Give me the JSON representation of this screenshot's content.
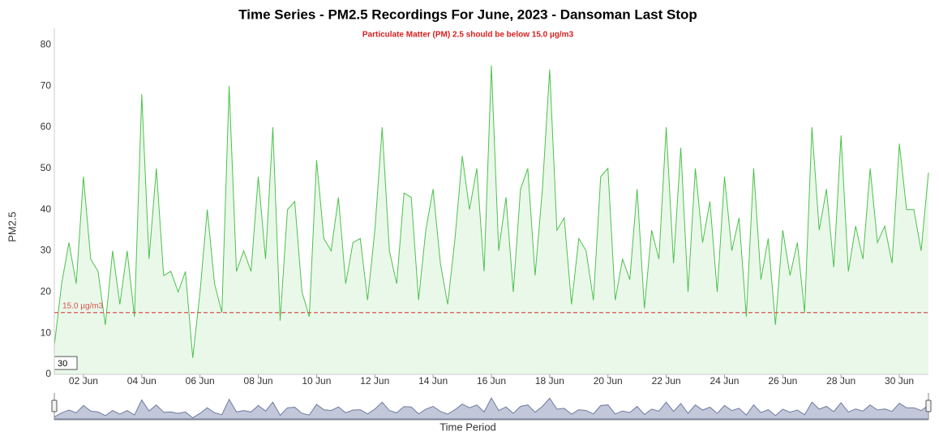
{
  "chart_data": {
    "type": "area",
    "title": "Time Series - PM2.5 Recordings For June, 2023 - Dansoman Last Stop",
    "subtitle": "Particulate Matter (PM) 2.5 should be below 15.0 µg/m3",
    "y_label": "PM2.5",
    "x_label": "Time Period",
    "range_label": "30",
    "threshold": {
      "value": 15,
      "label": "15.0 µg/m3",
      "color": "#d9534f"
    },
    "xlim": [
      1,
      31
    ],
    "xticks": [
      {
        "value": 2,
        "label": "02 Jun"
      },
      {
        "value": 4,
        "label": "04 Jun"
      },
      {
        "value": 6,
        "label": "06 Jun"
      },
      {
        "value": 8,
        "label": "08 Jun"
      },
      {
        "value": 10,
        "label": "10 Jun"
      },
      {
        "value": 12,
        "label": "12 Jun"
      },
      {
        "value": 14,
        "label": "14 Jun"
      },
      {
        "value": 16,
        "label": "16 Jun"
      },
      {
        "value": 18,
        "label": "18 Jun"
      },
      {
        "value": 20,
        "label": "20 Jun"
      },
      {
        "value": 22,
        "label": "22 Jun"
      },
      {
        "value": 24,
        "label": "24 Jun"
      },
      {
        "value": 26,
        "label": "26 Jun"
      },
      {
        "value": 28,
        "label": "28 Jun"
      },
      {
        "value": 30,
        "label": "30 Jun"
      }
    ],
    "ylim": [
      0,
      84
    ],
    "yticks": [
      0,
      10,
      20,
      30,
      40,
      50,
      60,
      70,
      80
    ],
    "x": [
      1,
      1.25,
      1.5,
      1.75,
      2,
      2.25,
      2.5,
      2.75,
      3,
      3.25,
      3.5,
      3.75,
      4,
      4.25,
      4.5,
      4.75,
      5,
      5.25,
      5.5,
      5.75,
      6,
      6.25,
      6.5,
      6.75,
      7,
      7.25,
      7.5,
      7.75,
      8,
      8.25,
      8.5,
      8.75,
      9,
      9.25,
      9.5,
      9.75,
      10,
      10.25,
      10.5,
      10.75,
      11,
      11.25,
      11.5,
      11.75,
      12,
      12.25,
      12.5,
      12.75,
      13,
      13.25,
      13.5,
      13.75,
      14,
      14.25,
      14.5,
      14.75,
      15,
      15.25,
      15.5,
      15.75,
      16,
      16.25,
      16.5,
      16.75,
      17,
      17.25,
      17.5,
      17.75,
      18,
      18.25,
      18.5,
      18.75,
      19,
      19.25,
      19.5,
      19.75,
      20,
      20.25,
      20.5,
      20.75,
      21,
      21.25,
      21.5,
      21.75,
      22,
      22.25,
      22.5,
      22.75,
      23,
      23.25,
      23.5,
      23.75,
      24,
      24.25,
      24.5,
      24.75,
      25,
      25.25,
      25.5,
      25.75,
      26,
      26.25,
      26.5,
      26.75,
      27,
      27.25,
      27.5,
      27.75,
      28,
      28.25,
      28.5,
      28.75,
      29,
      29.25,
      29.5,
      29.75,
      30,
      30.25,
      30.5,
      30.75,
      31
    ],
    "series": [
      {
        "name": "PM2.5",
        "color": "#4cc24c",
        "fill": "#eaf8ea",
        "values": [
          7,
          22,
          32,
          22,
          48,
          28,
          25,
          12,
          30,
          17,
          30,
          14,
          68,
          28,
          50,
          24,
          25,
          20,
          25,
          4,
          20,
          40,
          22,
          15,
          70,
          25,
          30,
          25,
          48,
          28,
          60,
          13,
          40,
          42,
          20,
          14,
          52,
          33,
          30,
          43,
          22,
          32,
          33,
          18,
          35,
          60,
          30,
          22,
          44,
          43,
          18,
          35,
          45,
          27,
          17,
          33,
          53,
          40,
          50,
          25,
          75,
          30,
          43,
          20,
          45,
          50,
          24,
          45,
          74,
          35,
          38,
          17,
          33,
          30,
          18,
          48,
          50,
          18,
          28,
          23,
          45,
          16,
          35,
          28,
          60,
          27,
          55,
          20,
          50,
          32,
          42,
          20,
          48,
          30,
          38,
          14,
          50,
          23,
          33,
          12,
          35,
          24,
          32,
          15,
          60,
          35,
          45,
          26,
          58,
          25,
          36,
          28,
          50,
          32,
          36,
          27,
          56,
          40,
          40,
          30,
          49
        ]
      }
    ],
    "navigator_color": "#9aa3c0"
  }
}
